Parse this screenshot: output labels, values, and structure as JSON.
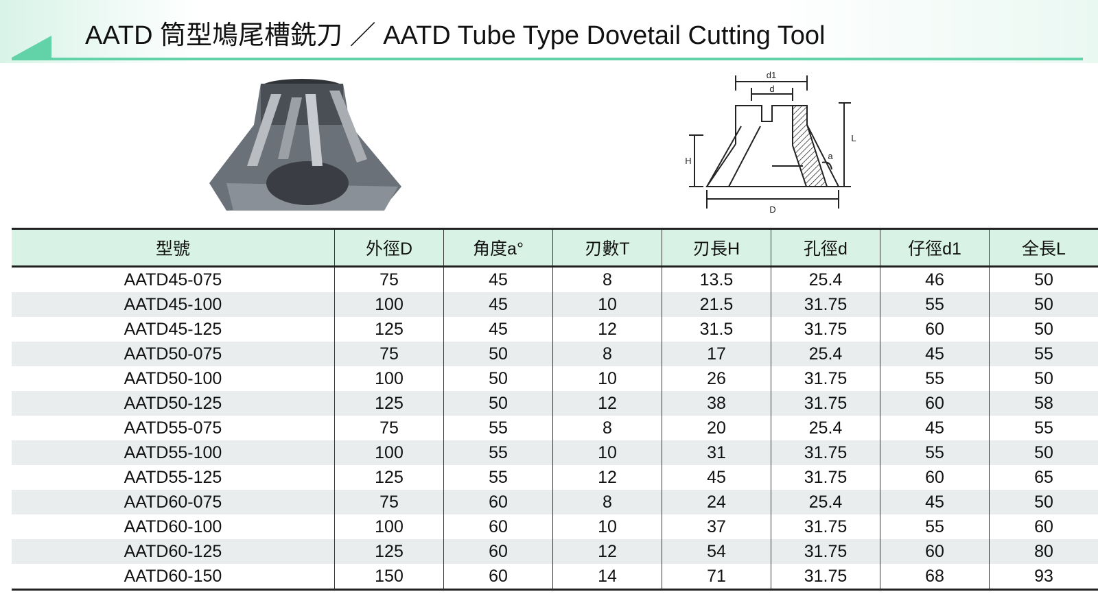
{
  "header": {
    "title": "AATD 筒型鳩尾槽銑刀 ／ AATD Tube Type Dovetail Cutting Tool"
  },
  "drawing": {
    "labels": {
      "d1": "d1",
      "d": "d",
      "H": "H",
      "L": "L",
      "a": "a",
      "D": "D"
    }
  },
  "table": {
    "columns": [
      "型號",
      "外徑D",
      "角度a°",
      "刃數T",
      "刃長H",
      "孔徑d",
      "仔徑d1",
      "全長L"
    ],
    "rows": [
      [
        "AATD45-075",
        "75",
        "45",
        "8",
        "13.5",
        "25.4",
        "46",
        "50"
      ],
      [
        "AATD45-100",
        "100",
        "45",
        "10",
        "21.5",
        "31.75",
        "55",
        "50"
      ],
      [
        "AATD45-125",
        "125",
        "45",
        "12",
        "31.5",
        "31.75",
        "60",
        "50"
      ],
      [
        "AATD50-075",
        "75",
        "50",
        "8",
        "17",
        "25.4",
        "45",
        "55"
      ],
      [
        "AATD50-100",
        "100",
        "50",
        "10",
        "26",
        "31.75",
        "55",
        "50"
      ],
      [
        "AATD50-125",
        "125",
        "50",
        "12",
        "38",
        "31.75",
        "60",
        "58"
      ],
      [
        "AATD55-075",
        "75",
        "55",
        "8",
        "20",
        "25.4",
        "45",
        "55"
      ],
      [
        "AATD55-100",
        "100",
        "55",
        "10",
        "31",
        "31.75",
        "55",
        "50"
      ],
      [
        "AATD55-125",
        "125",
        "55",
        "12",
        "45",
        "31.75",
        "60",
        "65"
      ],
      [
        "AATD60-075",
        "75",
        "60",
        "8",
        "24",
        "25.4",
        "45",
        "50"
      ],
      [
        "AATD60-100",
        "100",
        "60",
        "10",
        "37",
        "31.75",
        "55",
        "60"
      ],
      [
        "AATD60-125",
        "125",
        "60",
        "12",
        "54",
        "31.75",
        "60",
        "80"
      ],
      [
        "AATD60-150",
        "150",
        "60",
        "14",
        "71",
        "31.75",
        "68",
        "93"
      ]
    ]
  }
}
